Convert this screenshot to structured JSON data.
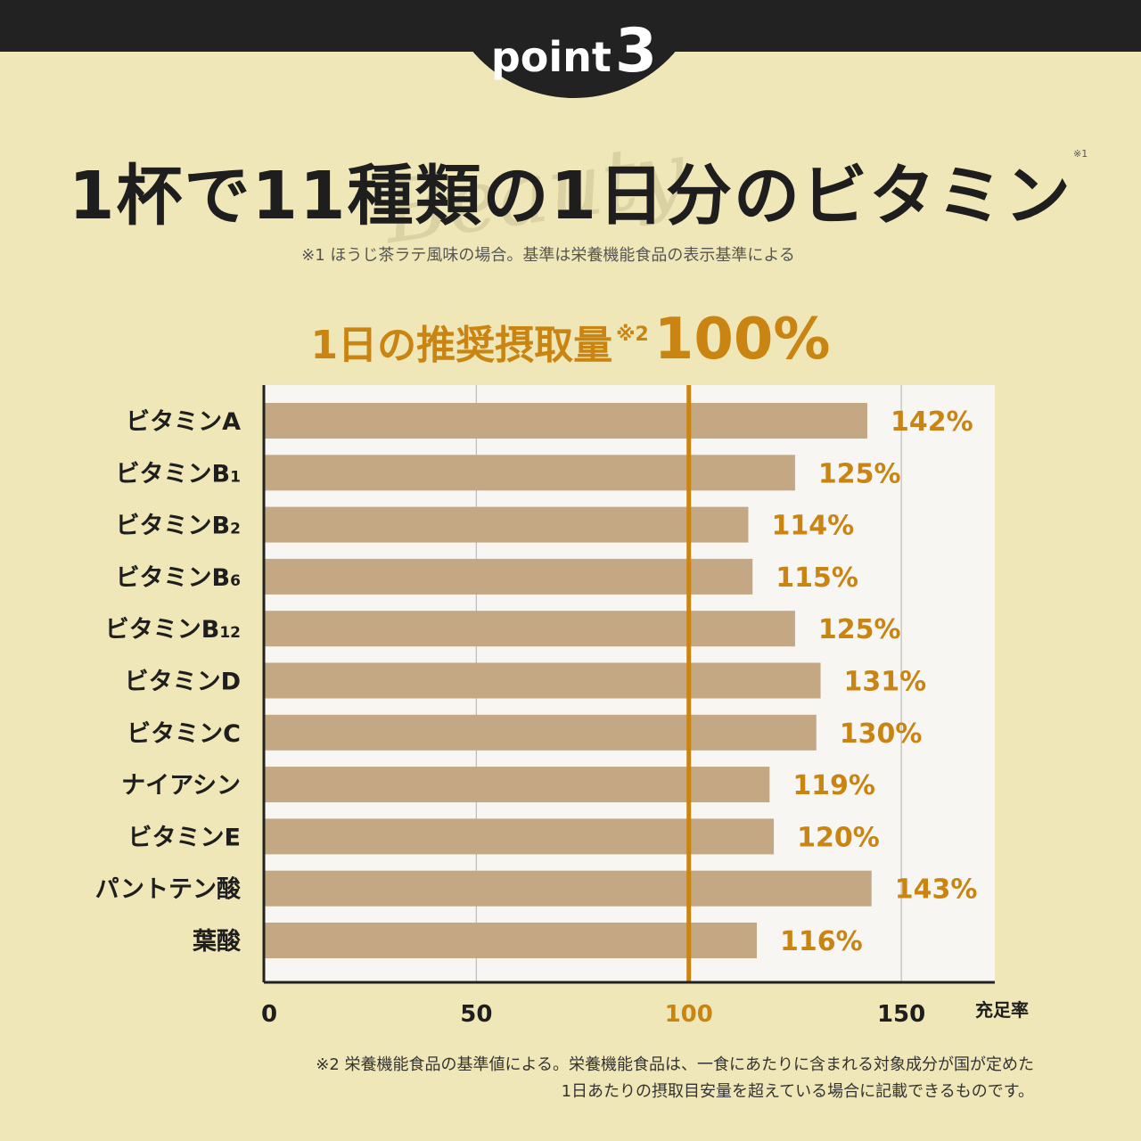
{
  "header": {
    "badge_word": "point",
    "badge_number": "3",
    "title": "1杯で11種類の1日分のビタミン",
    "title_note": "※1",
    "watermark": "Beauty",
    "subnote": "※1 ほうじ茶ラテ風味の場合。基準は栄養機能食品の表示基準による"
  },
  "recommendation": {
    "label": "1日の推奨摂取量",
    "mark": "※2",
    "value": "100%"
  },
  "chart_data": {
    "type": "bar",
    "orientation": "horizontal",
    "categories": [
      "ビタミンA",
      "ビタミンB1",
      "ビタミンB2",
      "ビタミンB6",
      "ビタミンB12",
      "ビタミンD",
      "ビタミンC",
      "ナイアシン",
      "ビタミンE",
      "パントテン酸",
      "葉酸"
    ],
    "category_labels": [
      {
        "main": "ビタミンA",
        "sub": ""
      },
      {
        "main": "ビタミンB",
        "sub": "1"
      },
      {
        "main": "ビタミンB",
        "sub": "2"
      },
      {
        "main": "ビタミンB",
        "sub": "6"
      },
      {
        "main": "ビタミンB",
        "sub": "12"
      },
      {
        "main": "ビタミンD",
        "sub": ""
      },
      {
        "main": "ビタミンC",
        "sub": ""
      },
      {
        "main": "ナイアシン",
        "sub": ""
      },
      {
        "main": "ビタミンE",
        "sub": ""
      },
      {
        "main": "パントテン酸",
        "sub": ""
      },
      {
        "main": "葉酸",
        "sub": ""
      }
    ],
    "values": [
      142,
      125,
      114,
      115,
      125,
      131,
      130,
      119,
      120,
      143,
      116
    ],
    "value_labels": [
      "142%",
      "125%",
      "114%",
      "115%",
      "125%",
      "131%",
      "130%",
      "119%",
      "120%",
      "143%",
      "116%"
    ],
    "xlim": [
      0,
      172
    ],
    "xticks": [
      0,
      50,
      100,
      150
    ],
    "xtick_labels": [
      "0",
      "50",
      "100",
      "150"
    ],
    "xlabel": "充足率",
    "reference_line": 100,
    "grid": true,
    "colors": {
      "bar": "#c3a883",
      "accent": "#c98412",
      "plot_bg": "#f7f6f3",
      "grid": "#bbbbbb",
      "axis": "#222222"
    }
  },
  "footnote": {
    "line1": "※2 栄養機能食品の基準値による。栄養機能食品は、一食にあたりに含まれる対象成分が国が定めた",
    "line2": "1日あたりの摂取目安量を超えている場合に記載できるものです。"
  }
}
